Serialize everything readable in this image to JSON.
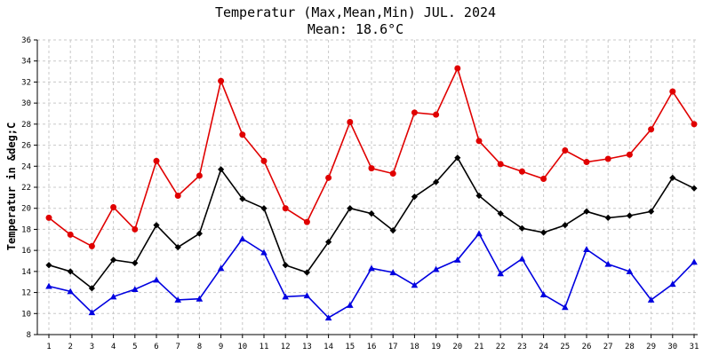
{
  "chart_data": {
    "type": "line",
    "title": "Temperatur (Max,Mean,Min) JUL. 2024",
    "subtitle": "Mean: 18.6°C",
    "xlabel": "",
    "ylabel": "Temperatur in &deg;C",
    "grid": true,
    "ylim": [
      8,
      36
    ],
    "yticks": [
      8,
      10,
      12,
      14,
      16,
      18,
      20,
      22,
      24,
      26,
      28,
      30,
      32,
      34,
      36
    ],
    "categories": [
      "1",
      "2",
      "3",
      "4",
      "5",
      "6",
      "7",
      "8",
      "9",
      "10",
      "11",
      "12",
      "13",
      "14",
      "15",
      "16",
      "17",
      "18",
      "19",
      "20",
      "21",
      "22",
      "23",
      "24",
      "25",
      "26",
      "27",
      "28",
      "29",
      "30",
      "31"
    ],
    "series": [
      {
        "name": "Max",
        "color": "#e00000",
        "marker": "circle",
        "values": [
          19.1,
          17.5,
          16.4,
          20.1,
          18.0,
          24.5,
          21.2,
          23.1,
          32.1,
          27.0,
          24.5,
          20.0,
          18.7,
          22.9,
          28.2,
          23.8,
          23.3,
          29.1,
          28.9,
          33.3,
          26.4,
          24.2,
          23.5,
          22.8,
          25.5,
          24.4,
          24.7,
          25.1,
          27.5,
          31.1,
          28.0
        ]
      },
      {
        "name": "Mean",
        "color": "#000000",
        "marker": "diamond",
        "values": [
          14.6,
          14.0,
          12.4,
          15.1,
          14.8,
          18.4,
          16.3,
          17.6,
          23.7,
          20.9,
          20.0,
          14.6,
          13.9,
          16.8,
          20.0,
          19.5,
          17.9,
          21.1,
          22.5,
          24.8,
          21.2,
          19.5,
          18.1,
          17.7,
          18.4,
          19.7,
          19.1,
          19.3,
          19.7,
          22.9,
          21.9
        ]
      },
      {
        "name": "Min",
        "color": "#0000e0",
        "marker": "triangle",
        "values": [
          12.6,
          12.1,
          10.1,
          11.6,
          12.3,
          13.2,
          11.3,
          11.4,
          14.3,
          17.1,
          15.8,
          11.6,
          11.7,
          9.6,
          10.8,
          14.3,
          13.9,
          12.7,
          14.2,
          15.1,
          17.6,
          13.8,
          15.2,
          11.8,
          10.6,
          16.1,
          14.7,
          14.0,
          11.3,
          12.8,
          14.9
        ]
      }
    ]
  }
}
